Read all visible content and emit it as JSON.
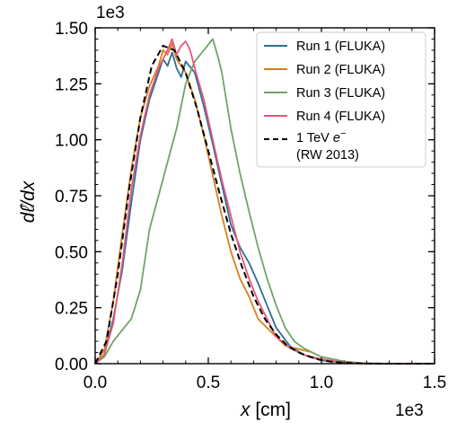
{
  "chart_data": {
    "type": "line",
    "xlabel_prefix": "x",
    "xlabel_unit": "[cm]",
    "ylabel": "dℓ̂/dx",
    "x_scale_label": "1e3",
    "y_scale_label": "1e3",
    "xlim": [
      0,
      1.5
    ],
    "ylim": [
      0,
      1.5
    ],
    "xticks": [
      0.0,
      0.5,
      1.0,
      1.5
    ],
    "xtick_labels": [
      "0.0",
      "0.5",
      "1.0",
      "1.5"
    ],
    "yticks": [
      0.0,
      0.25,
      0.5,
      0.75,
      1.0,
      1.25,
      1.5
    ],
    "ytick_labels": [
      "0.00",
      "0.25",
      "0.50",
      "0.75",
      "1.00",
      "1.25",
      "1.50"
    ],
    "grid": false,
    "legend_position": "top-right",
    "series": [
      {
        "name": "Run 1 (FLUKA)",
        "color": "#2e6f95",
        "dash": "",
        "x": [
          0.0,
          0.04,
          0.08,
          0.12,
          0.16,
          0.2,
          0.24,
          0.28,
          0.3,
          0.32,
          0.34,
          0.36,
          0.38,
          0.4,
          0.44,
          0.48,
          0.52,
          0.56,
          0.6,
          0.64,
          0.68,
          0.72,
          0.76,
          0.8,
          0.86,
          0.92,
          1.0,
          1.1,
          1.2,
          1.3,
          1.5
        ],
        "y": [
          0.0,
          0.04,
          0.2,
          0.42,
          0.72,
          1.0,
          1.18,
          1.3,
          1.36,
          1.33,
          1.39,
          1.32,
          1.28,
          1.35,
          1.3,
          1.15,
          0.98,
          0.8,
          0.62,
          0.52,
          0.45,
          0.36,
          0.26,
          0.16,
          0.08,
          0.04,
          0.015,
          0.005,
          0.002,
          0.0,
          0.0
        ]
      },
      {
        "name": "Run 2 (FLUKA)",
        "color": "#d3811d",
        "dash": "",
        "x": [
          0.0,
          0.04,
          0.08,
          0.12,
          0.16,
          0.2,
          0.24,
          0.28,
          0.3,
          0.32,
          0.34,
          0.36,
          0.4,
          0.44,
          0.48,
          0.52,
          0.56,
          0.6,
          0.64,
          0.68,
          0.72,
          0.76,
          0.8,
          0.84,
          0.88,
          0.92,
          0.96,
          1.0,
          1.1,
          1.2,
          1.5
        ],
        "y": [
          0.0,
          0.06,
          0.28,
          0.58,
          0.87,
          1.1,
          1.24,
          1.33,
          1.4,
          1.38,
          1.43,
          1.36,
          1.3,
          1.18,
          1.02,
          0.84,
          0.66,
          0.5,
          0.38,
          0.3,
          0.2,
          0.16,
          0.12,
          0.08,
          0.07,
          0.06,
          0.05,
          0.03,
          0.01,
          0.0,
          0.0
        ]
      },
      {
        "name": "Run 3 (FLUKA)",
        "color": "#6fa568",
        "dash": "",
        "x": [
          0.0,
          0.04,
          0.08,
          0.12,
          0.16,
          0.2,
          0.24,
          0.28,
          0.32,
          0.36,
          0.4,
          0.44,
          0.48,
          0.52,
          0.54,
          0.56,
          0.6,
          0.64,
          0.68,
          0.72,
          0.76,
          0.8,
          0.84,
          0.88,
          0.92,
          0.96,
          1.0,
          1.1,
          1.2,
          1.5
        ],
        "y": [
          0.0,
          0.03,
          0.1,
          0.15,
          0.2,
          0.33,
          0.6,
          0.75,
          0.9,
          1.05,
          1.25,
          1.35,
          1.4,
          1.45,
          1.38,
          1.3,
          1.05,
          0.85,
          0.68,
          0.52,
          0.38,
          0.26,
          0.16,
          0.1,
          0.07,
          0.05,
          0.03,
          0.01,
          0.0,
          0.0
        ]
      },
      {
        "name": "Run 4 (FLUKA)",
        "color": "#e6577c",
        "dash": "",
        "x": [
          0.0,
          0.04,
          0.08,
          0.12,
          0.16,
          0.2,
          0.24,
          0.28,
          0.32,
          0.34,
          0.36,
          0.38,
          0.4,
          0.42,
          0.44,
          0.48,
          0.52,
          0.56,
          0.6,
          0.64,
          0.68,
          0.72,
          0.76,
          0.8,
          0.86,
          0.92,
          1.0,
          1.1,
          1.2,
          1.5
        ],
        "y": [
          0.0,
          0.04,
          0.18,
          0.45,
          0.78,
          1.02,
          1.2,
          1.32,
          1.4,
          1.45,
          1.38,
          1.42,
          1.44,
          1.4,
          1.32,
          1.18,
          1.0,
          0.82,
          0.66,
          0.5,
          0.38,
          0.28,
          0.2,
          0.12,
          0.07,
          0.04,
          0.02,
          0.005,
          0.0,
          0.0
        ]
      },
      {
        "name_prefix": "1 TeV ",
        "name_particle": "e",
        "name_charge": "−",
        "name_line2": "(RW 2013)",
        "color": "#000000",
        "dash": "7,4",
        "x": [
          0.0,
          0.05,
          0.1,
          0.15,
          0.2,
          0.25,
          0.3,
          0.35,
          0.4,
          0.45,
          0.5,
          0.55,
          0.6,
          0.65,
          0.7,
          0.75,
          0.8,
          0.85,
          0.9,
          0.95,
          1.0,
          1.05,
          1.1,
          1.2,
          1.5
        ],
        "y": [
          0.0,
          0.1,
          0.4,
          0.78,
          1.1,
          1.33,
          1.42,
          1.4,
          1.3,
          1.14,
          0.95,
          0.76,
          0.58,
          0.43,
          0.3,
          0.2,
          0.13,
          0.08,
          0.05,
          0.03,
          0.015,
          0.008,
          0.004,
          0.0,
          0.0
        ]
      }
    ]
  }
}
